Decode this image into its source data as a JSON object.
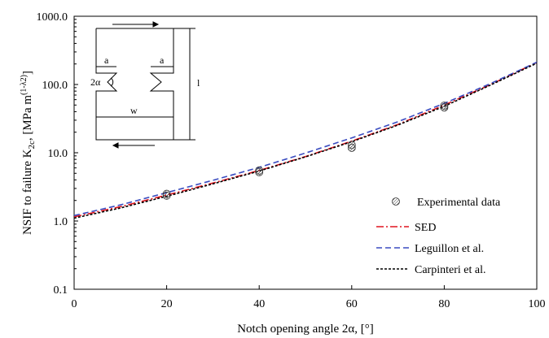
{
  "chart_data": {
    "type": "line",
    "title": "",
    "xlabel": "Notch opening angle 2α, [°]",
    "ylabel": {
      "main": "NSIF to failure K",
      "subscript": "2c",
      "unit_open": ", [MPa m",
      "unit_exponent": "(1-λ2)",
      "unit_close": "]"
    },
    "xlim": [
      0,
      100
    ],
    "ylim": [
      0.1,
      1000
    ],
    "yscale": "log",
    "x_ticks": [
      0,
      20,
      40,
      60,
      80,
      100
    ],
    "x_tick_labels": [
      "0",
      "20",
      "40",
      "60",
      "80",
      "100"
    ],
    "y_ticks": [
      0.1,
      1,
      10,
      100,
      1000
    ],
    "y_tick_labels": [
      "0.1",
      "1.0",
      "10.0",
      "100.0",
      "1000.0"
    ],
    "grid": false,
    "legend_position": "bottom-right",
    "experimental": {
      "name": "Experimental data",
      "points": [
        {
          "x": 20,
          "y": 2.35
        },
        {
          "x": 20,
          "y": 2.5
        },
        {
          "x": 40,
          "y": 5.2
        },
        {
          "x": 40,
          "y": 5.5
        },
        {
          "x": 60,
          "y": 11.8
        },
        {
          "x": 60,
          "y": 13.0
        },
        {
          "x": 80,
          "y": 46.0
        },
        {
          "x": 80,
          "y": 49.0
        }
      ]
    },
    "series": [
      {
        "name": "SED",
        "color": "#e0141e",
        "dash": "dashdot",
        "x": [
          0,
          10,
          20,
          30,
          40,
          50,
          60,
          70,
          80,
          90,
          100
        ],
        "y": [
          1.15,
          1.62,
          2.4,
          3.6,
          5.5,
          8.8,
          14.8,
          26.0,
          50.0,
          100.0,
          210.0
        ]
      },
      {
        "name": "Leguillon et al.",
        "color": "#3a4cc0",
        "dash": "dashed",
        "x": [
          0,
          10,
          20,
          30,
          40,
          50,
          60,
          70,
          80,
          90,
          100
        ],
        "y": [
          1.2,
          1.72,
          2.6,
          3.95,
          6.1,
          9.9,
          16.5,
          28.5,
          53.0,
          103.0,
          212.0
        ]
      },
      {
        "name": "Carpinteri et al.",
        "color": "#000000",
        "dash": "dotted",
        "x": [
          0,
          10,
          20,
          30,
          40,
          50,
          60,
          70,
          80,
          90,
          100
        ],
        "y": [
          1.1,
          1.55,
          2.3,
          3.5,
          5.4,
          8.7,
          14.5,
          25.5,
          48.0,
          98.0,
          205.0
        ]
      }
    ],
    "inset": {
      "labels": {
        "a_left": "a",
        "a_right": "a",
        "angle": "2α",
        "width": "w",
        "length": "l"
      }
    }
  }
}
